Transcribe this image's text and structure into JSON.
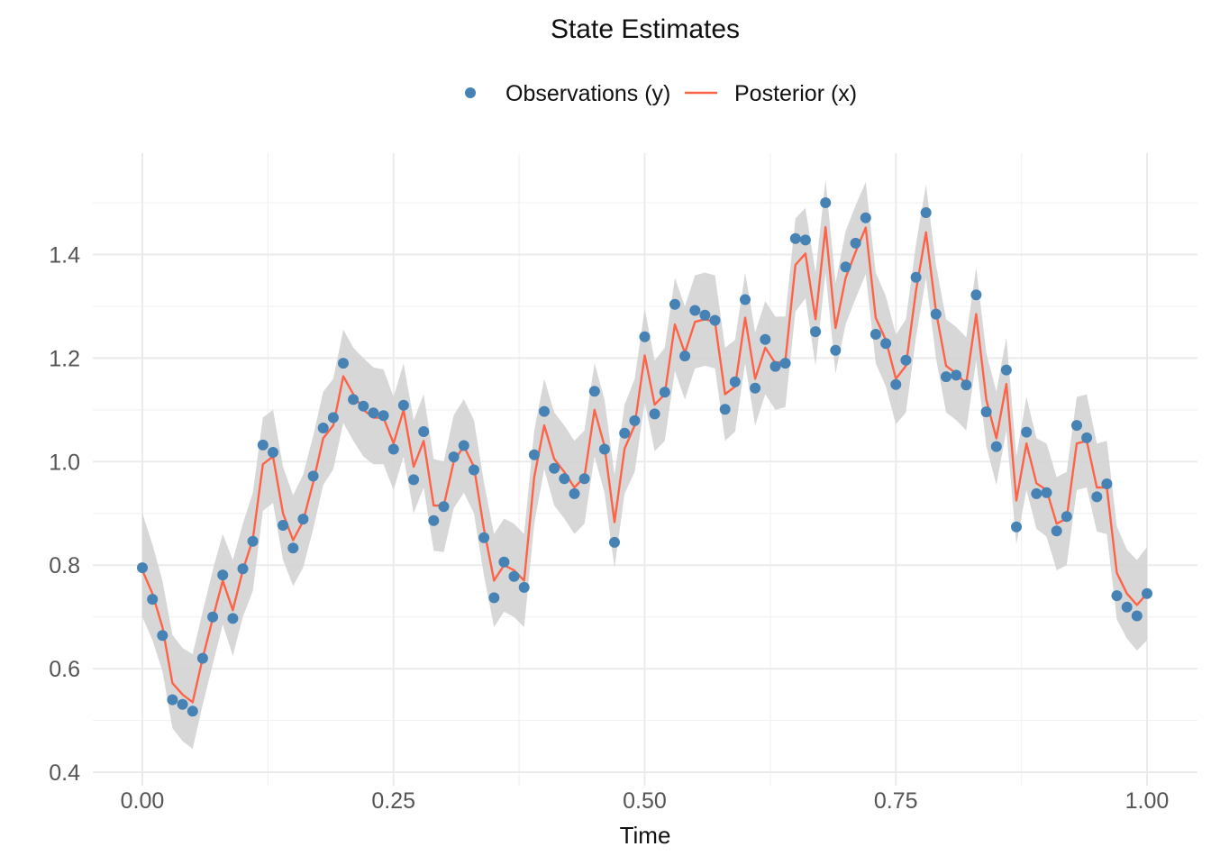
{
  "chart_data": {
    "type": "line",
    "title": "State Estimates",
    "xlabel": "Time",
    "ylabel": "",
    "xlim": [
      0,
      1
    ],
    "ylim": [
      0.4,
      1.5
    ],
    "x_ticks": [
      "0.00",
      "0.25",
      "0.50",
      "0.75",
      "1.00"
    ],
    "y_ticks": [
      "0.4",
      "0.6",
      "0.8",
      "1.0",
      "1.2",
      "1.4"
    ],
    "grid": true,
    "legend_position": "top",
    "colors": {
      "observations": "#4682b4",
      "posterior": "#ff6347",
      "band": "#d3d3d3",
      "grid_major": "#ebebeb",
      "grid_minor": "#f2f2f2"
    },
    "series": [
      {
        "name": "Observations (y)",
        "kind": "points",
        "x": [
          0.0,
          0.01,
          0.02,
          0.03,
          0.04,
          0.05,
          0.06,
          0.07,
          0.08,
          0.09,
          0.1,
          0.11,
          0.12,
          0.13,
          0.14,
          0.15,
          0.16,
          0.17,
          0.18,
          0.19,
          0.2,
          0.21,
          0.22,
          0.23,
          0.24,
          0.25,
          0.26,
          0.27,
          0.28,
          0.29,
          0.3,
          0.31,
          0.32,
          0.33,
          0.34,
          0.35,
          0.36,
          0.37,
          0.38,
          0.39,
          0.4,
          0.41,
          0.42,
          0.43,
          0.44,
          0.45,
          0.46,
          0.47,
          0.48,
          0.49,
          0.5,
          0.51,
          0.52,
          0.53,
          0.54,
          0.55,
          0.56,
          0.57,
          0.58,
          0.59,
          0.6,
          0.61,
          0.62,
          0.63,
          0.64,
          0.65,
          0.66,
          0.67,
          0.68,
          0.69,
          0.7,
          0.71,
          0.72,
          0.73,
          0.74,
          0.75,
          0.76,
          0.77,
          0.78,
          0.79,
          0.8,
          0.81,
          0.82,
          0.83,
          0.84,
          0.85,
          0.86,
          0.87,
          0.88,
          0.89,
          0.9,
          0.91,
          0.92,
          0.93,
          0.94,
          0.95,
          0.96,
          0.97,
          0.98,
          0.99,
          1.0
        ],
        "values": [
          0.795,
          0.734,
          0.664,
          0.54,
          0.531,
          0.518,
          0.62,
          0.7,
          0.781,
          0.697,
          0.793,
          0.846,
          1.032,
          1.018,
          0.877,
          0.833,
          0.889,
          0.972,
          1.065,
          1.085,
          1.19,
          1.12,
          1.107,
          1.094,
          1.089,
          1.024,
          1.109,
          0.965,
          1.058,
          0.886,
          0.913,
          1.009,
          1.031,
          0.984,
          0.853,
          0.737,
          0.806,
          0.778,
          0.757,
          1.013,
          1.097,
          0.987,
          0.967,
          0.938,
          0.967,
          1.136,
          1.024,
          0.844,
          1.055,
          1.079,
          1.241,
          1.092,
          1.134,
          1.304,
          1.204,
          1.292,
          1.283,
          1.273,
          1.101,
          1.154,
          1.313,
          1.142,
          1.236,
          1.184,
          1.19,
          1.431,
          1.428,
          1.251,
          1.5,
          1.215,
          1.376,
          1.422,
          1.471,
          1.246,
          1.228,
          1.149,
          1.196,
          1.356,
          1.481,
          1.285,
          1.164,
          1.167,
          1.148,
          1.322,
          1.096,
          1.029,
          1.177,
          0.874,
          1.057,
          0.938,
          0.94,
          0.866,
          0.894,
          1.07,
          1.046,
          0.932,
          0.957,
          0.741,
          0.719,
          0.702,
          0.745
        ]
      },
      {
        "name": "Posterior (x)",
        "kind": "line",
        "x": [
          0.0,
          0.01,
          0.02,
          0.03,
          0.04,
          0.05,
          0.06,
          0.07,
          0.08,
          0.09,
          0.1,
          0.11,
          0.12,
          0.13,
          0.14,
          0.15,
          0.16,
          0.17,
          0.18,
          0.19,
          0.2,
          0.21,
          0.22,
          0.23,
          0.24,
          0.25,
          0.26,
          0.27,
          0.28,
          0.29,
          0.3,
          0.31,
          0.32,
          0.33,
          0.34,
          0.35,
          0.36,
          0.37,
          0.38,
          0.39,
          0.4,
          0.41,
          0.42,
          0.43,
          0.44,
          0.45,
          0.46,
          0.47,
          0.48,
          0.49,
          0.5,
          0.51,
          0.52,
          0.53,
          0.54,
          0.55,
          0.56,
          0.57,
          0.58,
          0.59,
          0.6,
          0.61,
          0.62,
          0.63,
          0.64,
          0.65,
          0.66,
          0.67,
          0.68,
          0.69,
          0.7,
          0.71,
          0.72,
          0.73,
          0.74,
          0.75,
          0.76,
          0.77,
          0.78,
          0.79,
          0.8,
          0.81,
          0.82,
          0.83,
          0.84,
          0.85,
          0.86,
          0.87,
          0.88,
          0.89,
          0.9,
          0.91,
          0.92,
          0.93,
          0.94,
          0.95,
          0.96,
          0.97,
          0.98,
          0.99,
          1.0
        ],
        "values": [
          0.79,
          0.745,
          0.68,
          0.572,
          0.55,
          0.535,
          0.62,
          0.697,
          0.77,
          0.713,
          0.79,
          0.85,
          0.995,
          1.01,
          0.9,
          0.848,
          0.885,
          0.96,
          1.045,
          1.07,
          1.165,
          1.13,
          1.1,
          1.085,
          1.085,
          1.035,
          1.1,
          0.99,
          1.04,
          0.915,
          0.915,
          1.0,
          1.03,
          0.99,
          0.87,
          0.77,
          0.8,
          0.79,
          0.77,
          0.97,
          1.07,
          1.005,
          0.98,
          0.95,
          0.97,
          1.1,
          1.03,
          0.883,
          1.025,
          1.07,
          1.205,
          1.11,
          1.13,
          1.265,
          1.21,
          1.27,
          1.275,
          1.27,
          1.13,
          1.145,
          1.278,
          1.16,
          1.22,
          1.19,
          1.195,
          1.38,
          1.402,
          1.275,
          1.453,
          1.258,
          1.355,
          1.405,
          1.452,
          1.278,
          1.235,
          1.16,
          1.185,
          1.33,
          1.443,
          1.29,
          1.185,
          1.17,
          1.15,
          1.285,
          1.12,
          1.045,
          1.15,
          0.925,
          1.035,
          0.958,
          0.945,
          0.88,
          0.89,
          1.035,
          1.04,
          0.95,
          0.95,
          0.785,
          0.745,
          0.723,
          0.745
        ]
      },
      {
        "name": "",
        "kind": "band",
        "x": [
          0.0,
          0.01,
          0.02,
          0.03,
          0.04,
          0.05,
          0.06,
          0.07,
          0.08,
          0.09,
          0.1,
          0.11,
          0.12,
          0.13,
          0.14,
          0.15,
          0.16,
          0.17,
          0.18,
          0.19,
          0.2,
          0.21,
          0.22,
          0.23,
          0.24,
          0.25,
          0.26,
          0.27,
          0.28,
          0.29,
          0.3,
          0.31,
          0.32,
          0.33,
          0.34,
          0.35,
          0.36,
          0.37,
          0.38,
          0.39,
          0.4,
          0.41,
          0.42,
          0.43,
          0.44,
          0.45,
          0.46,
          0.47,
          0.48,
          0.49,
          0.5,
          0.51,
          0.52,
          0.53,
          0.54,
          0.55,
          0.56,
          0.57,
          0.58,
          0.59,
          0.6,
          0.61,
          0.62,
          0.63,
          0.64,
          0.65,
          0.66,
          0.67,
          0.68,
          0.69,
          0.7,
          0.71,
          0.72,
          0.73,
          0.74,
          0.75,
          0.76,
          0.77,
          0.78,
          0.79,
          0.8,
          0.81,
          0.82,
          0.83,
          0.84,
          0.85,
          0.86,
          0.87,
          0.88,
          0.89,
          0.9,
          0.91,
          0.92,
          0.93,
          0.94,
          0.95,
          0.96,
          0.97,
          0.98,
          0.99,
          1.0
        ],
        "upper": [
          0.9,
          0.84,
          0.77,
          0.665,
          0.64,
          0.628,
          0.71,
          0.79,
          0.86,
          0.81,
          0.88,
          0.94,
          1.085,
          1.1,
          0.99,
          0.935,
          0.975,
          1.05,
          1.135,
          1.16,
          1.255,
          1.22,
          1.2,
          1.182,
          1.178,
          1.125,
          1.19,
          1.08,
          1.13,
          1.005,
          1.0,
          1.09,
          1.12,
          1.08,
          0.96,
          0.86,
          0.89,
          0.88,
          0.86,
          1.06,
          1.16,
          1.095,
          1.07,
          1.04,
          1.06,
          1.19,
          1.12,
          0.975,
          1.11,
          1.16,
          1.295,
          1.195,
          1.22,
          1.355,
          1.3,
          1.36,
          1.365,
          1.36,
          1.22,
          1.235,
          1.365,
          1.25,
          1.31,
          1.28,
          1.28,
          1.47,
          1.49,
          1.365,
          1.545,
          1.345,
          1.445,
          1.495,
          1.54,
          1.365,
          1.32,
          1.245,
          1.275,
          1.42,
          1.535,
          1.38,
          1.275,
          1.26,
          1.24,
          1.375,
          1.21,
          1.135,
          1.24,
          1.01,
          1.125,
          1.045,
          1.035,
          0.97,
          0.98,
          1.125,
          1.13,
          1.035,
          1.04,
          0.875,
          0.83,
          0.81,
          0.835
        ],
        "lower": [
          0.7,
          0.655,
          0.595,
          0.485,
          0.46,
          0.445,
          0.53,
          0.608,
          0.685,
          0.625,
          0.7,
          0.75,
          0.905,
          0.92,
          0.81,
          0.76,
          0.795,
          0.87,
          0.955,
          0.985,
          1.075,
          1.04,
          1.01,
          0.995,
          0.995,
          0.945,
          1.01,
          0.9,
          0.95,
          0.828,
          0.825,
          0.91,
          0.94,
          0.9,
          0.78,
          0.68,
          0.71,
          0.7,
          0.68,
          0.88,
          0.985,
          0.915,
          0.89,
          0.86,
          0.88,
          1.01,
          0.94,
          0.795,
          0.938,
          0.98,
          1.115,
          1.02,
          1.04,
          1.175,
          1.12,
          1.18,
          1.185,
          1.18,
          1.04,
          1.058,
          1.19,
          1.07,
          1.13,
          1.1,
          1.105,
          1.29,
          1.315,
          1.185,
          1.365,
          1.17,
          1.265,
          1.315,
          1.362,
          1.19,
          1.145,
          1.072,
          1.095,
          1.24,
          1.355,
          1.2,
          1.095,
          1.08,
          1.06,
          1.195,
          1.03,
          0.955,
          1.06,
          0.84,
          0.945,
          0.87,
          0.855,
          0.79,
          0.8,
          0.945,
          0.95,
          0.865,
          0.86,
          0.695,
          0.658,
          0.635,
          0.655
        ]
      }
    ]
  }
}
